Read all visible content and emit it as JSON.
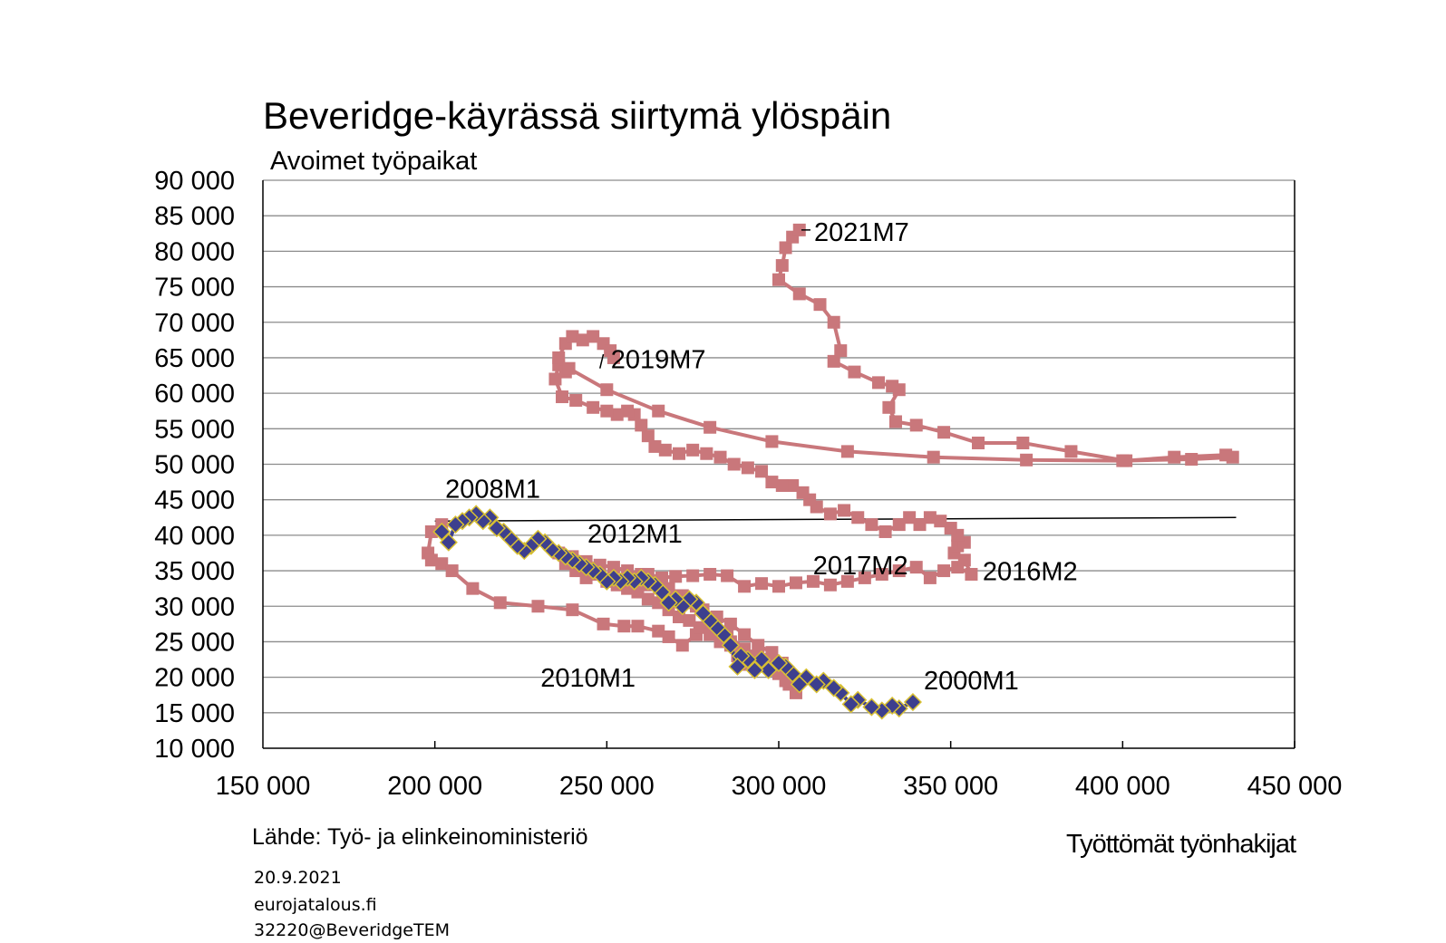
{
  "chart_data": {
    "type": "line",
    "title": "Beveridge-käyrässä siirtymä ylöspäin",
    "ylabel": "Avoimet työpaikat",
    "xlabel": "Työttömät työnhakijat",
    "xlim": [
      150000,
      450000
    ],
    "ylim": [
      10000,
      90000
    ],
    "x_ticks": [
      "150 000",
      "200 000",
      "250 000",
      "300 000",
      "350 000",
      "400 000",
      "450 000"
    ],
    "y_ticks": [
      "10 000",
      "15 000",
      "20 000",
      "25 000",
      "30 000",
      "35 000",
      "40 000",
      "45 000",
      "50 000",
      "55 000",
      "60 000",
      "65 000",
      "70 000",
      "75 000",
      "80 000",
      "85 000",
      "90 000"
    ],
    "grid": "horizontal",
    "colors": {
      "series_2000_2010": "#3d3f8e",
      "series_2010_2021": "#c9777b",
      "trend_2000": "#3d3f8e",
      "trend_2016": "#c9777b",
      "reference": "#000000",
      "marker_edge_2000": "#d8c032"
    },
    "annotations": [
      {
        "text": "2021M7",
        "x": 305000,
        "y": 83000
      },
      {
        "text": "2019M7",
        "x": 248000,
        "y": 63500
      },
      {
        "text": "2008M1",
        "x": 212000,
        "y": 43000
      },
      {
        "text": "2012M1",
        "x": 218000,
        "y": 41500
      },
      {
        "text": "2017M2",
        "x": 330000,
        "y": 36000
      },
      {
        "text": "2016M2",
        "x": 354000,
        "y": 36500
      },
      {
        "text": "2010M1",
        "x": 265000,
        "y": 22000
      },
      {
        "text": "2000M1",
        "x": 339000,
        "y": 16500
      }
    ],
    "series": [
      {
        "values": [
          [
            339000,
            16500
          ],
          [
            335000,
            15600
          ],
          [
            333000,
            16000
          ],
          [
            330000,
            15300
          ],
          [
            327000,
            15800
          ],
          [
            323000,
            16800
          ],
          [
            321000,
            16200
          ],
          [
            318000,
            17800
          ],
          [
            316000,
            18500
          ],
          [
            313000,
            19500
          ],
          [
            311000,
            19000
          ],
          [
            308000,
            20000
          ],
          [
            306000,
            19000
          ],
          [
            304000,
            20500
          ],
          [
            302000,
            21500
          ],
          [
            300000,
            22000
          ],
          [
            297000,
            21000
          ],
          [
            295000,
            22500
          ],
          [
            293000,
            21000
          ],
          [
            291000,
            22500
          ],
          [
            289000,
            23000
          ],
          [
            288000,
            21500
          ],
          [
            286000,
            24500
          ],
          [
            284000,
            26000
          ],
          [
            282000,
            27000
          ],
          [
            280000,
            28000
          ],
          [
            278000,
            29000
          ],
          [
            276000,
            30500
          ],
          [
            274000,
            31000
          ],
          [
            272000,
            30000
          ],
          [
            270000,
            31000
          ],
          [
            268000,
            30500
          ],
          [
            266000,
            32000
          ],
          [
            264000,
            33000
          ],
          [
            262000,
            33500
          ],
          [
            260000,
            34000
          ],
          [
            258000,
            33500
          ],
          [
            256000,
            34000
          ],
          [
            254000,
            33500
          ],
          [
            252000,
            34000
          ],
          [
            250000,
            33500
          ],
          [
            248000,
            34500
          ],
          [
            246000,
            35000
          ],
          [
            244000,
            35500
          ],
          [
            242000,
            36000
          ],
          [
            240000,
            36500
          ],
          [
            238000,
            37000
          ],
          [
            236000,
            37500
          ],
          [
            234000,
            38000
          ],
          [
            232000,
            39000
          ],
          [
            230000,
            39500
          ],
          [
            228000,
            38500
          ],
          [
            226000,
            37800
          ],
          [
            224000,
            38500
          ],
          [
            222000,
            39500
          ],
          [
            220000,
            40500
          ],
          [
            218000,
            41000
          ],
          [
            216000,
            42500
          ],
          [
            214000,
            42000
          ],
          [
            212000,
            43000
          ],
          [
            210000,
            42500
          ],
          [
            208000,
            42000
          ],
          [
            206000,
            41500
          ],
          [
            204000,
            39000
          ],
          [
            202000,
            40500
          ]
        ]
      },
      {
        "values": [
          [
            202000,
            41500
          ],
          [
            199000,
            40500
          ],
          [
            198000,
            37500
          ],
          [
            199000,
            36500
          ],
          [
            202000,
            36000
          ],
          [
            205000,
            35000
          ],
          [
            211000,
            32500
          ],
          [
            219000,
            30500
          ],
          [
            230000,
            30000
          ],
          [
            240000,
            29500
          ],
          [
            249000,
            27500
          ],
          [
            255000,
            27200
          ],
          [
            259000,
            27200
          ],
          [
            265000,
            26500
          ],
          [
            268000,
            25700
          ],
          [
            272000,
            24500
          ],
          [
            276000,
            26000
          ],
          [
            280000,
            27000
          ],
          [
            283000,
            26000
          ],
          [
            286000,
            25000
          ],
          [
            288000,
            23000
          ],
          [
            291000,
            21800
          ],
          [
            294000,
            23000
          ],
          [
            297000,
            21500
          ],
          [
            300000,
            20500
          ],
          [
            303000,
            19000
          ],
          [
            305000,
            17800
          ],
          [
            302000,
            19500
          ],
          [
            299000,
            21000
          ],
          [
            295000,
            22500
          ],
          [
            290000,
            24000
          ],
          [
            285000,
            26000
          ],
          [
            280000,
            28000
          ],
          [
            276000,
            30000
          ],
          [
            272000,
            31500
          ],
          [
            268000,
            32500
          ],
          [
            264000,
            33500
          ],
          [
            260000,
            34500
          ],
          [
            256000,
            35000
          ],
          [
            252000,
            35500
          ],
          [
            248000,
            35800
          ],
          [
            244000,
            36300
          ],
          [
            240000,
            37000
          ],
          [
            236000,
            37500
          ],
          [
            238000,
            36000
          ],
          [
            241000,
            35000
          ],
          [
            244000,
            34000
          ],
          [
            247000,
            34500
          ],
          [
            250000,
            33500
          ],
          [
            253000,
            33000
          ],
          [
            256000,
            32500
          ],
          [
            259000,
            32000
          ],
          [
            262000,
            31000
          ],
          [
            265000,
            30500
          ],
          [
            268000,
            29500
          ],
          [
            271000,
            28500
          ],
          [
            274000,
            28000
          ],
          [
            277000,
            27000
          ],
          [
            280000,
            26000
          ],
          [
            283000,
            25000
          ],
          [
            286000,
            24500
          ],
          [
            289000,
            23500
          ],
          [
            293000,
            23000
          ],
          [
            297000,
            22500
          ],
          [
            301000,
            22000
          ],
          [
            298000,
            23500
          ],
          [
            294000,
            24500
          ],
          [
            290000,
            26000
          ],
          [
            286000,
            27500
          ],
          [
            282000,
            28500
          ],
          [
            278000,
            29500
          ],
          [
            274000,
            30500
          ],
          [
            270000,
            31500
          ],
          [
            266000,
            32500
          ],
          [
            262000,
            33000
          ],
          [
            258000,
            34000
          ],
          [
            262000,
            34500
          ],
          [
            266000,
            34000
          ],
          [
            270000,
            34200
          ],
          [
            275000,
            34300
          ],
          [
            280000,
            34500
          ],
          [
            285000,
            34300
          ],
          [
            290000,
            32800
          ],
          [
            295000,
            33200
          ],
          [
            300000,
            32800
          ],
          [
            305000,
            33300
          ],
          [
            310000,
            33500
          ],
          [
            315000,
            33000
          ],
          [
            320000,
            33500
          ],
          [
            325000,
            34000
          ],
          [
            330000,
            34500
          ],
          [
            335000,
            35000
          ],
          [
            340000,
            35500
          ],
          [
            344000,
            34000
          ],
          [
            348000,
            35000
          ],
          [
            352000,
            35500
          ],
          [
            356000,
            34500
          ],
          [
            354000,
            36500
          ],
          [
            351000,
            37500
          ],
          [
            352000,
            38500
          ],
          [
            354000,
            39000
          ],
          [
            352000,
            40000
          ],
          [
            350000,
            41000
          ],
          [
            347000,
            42000
          ],
          [
            344000,
            42500
          ],
          [
            341000,
            41500
          ],
          [
            338000,
            42500
          ],
          [
            335000,
            41500
          ],
          [
            331000,
            40500
          ],
          [
            327000,
            41500
          ],
          [
            323000,
            42500
          ],
          [
            319000,
            43500
          ],
          [
            315000,
            43000
          ],
          [
            311000,
            44000
          ],
          [
            309000,
            45000
          ],
          [
            307000,
            46000
          ],
          [
            304000,
            47000
          ],
          [
            301000,
            47000
          ],
          [
            298000,
            47500
          ],
          [
            295000,
            49000
          ],
          [
            291000,
            49500
          ],
          [
            287000,
            50000
          ],
          [
            283000,
            51000
          ],
          [
            279000,
            51500
          ],
          [
            275000,
            52000
          ],
          [
            271000,
            51500
          ],
          [
            267000,
            52000
          ],
          [
            264000,
            52500
          ],
          [
            262000,
            54000
          ],
          [
            260000,
            55500
          ],
          [
            258000,
            57000
          ],
          [
            256000,
            57500
          ],
          [
            253000,
            57000
          ],
          [
            250000,
            57500
          ],
          [
            246000,
            58000
          ],
          [
            241000,
            59000
          ],
          [
            237000,
            59500
          ],
          [
            235000,
            62000
          ],
          [
            236000,
            64000
          ],
          [
            238000,
            63000
          ],
          [
            236000,
            65000
          ],
          [
            238000,
            67000
          ],
          [
            240000,
            68000
          ],
          [
            243000,
            67500
          ],
          [
            246000,
            68000
          ],
          [
            249000,
            67000
          ],
          [
            251000,
            66000
          ],
          [
            252000,
            65000
          ]
        ]
      },
      {
        "values": [
          [
            239000,
            63500
          ],
          [
            250000,
            60500
          ],
          [
            265000,
            57500
          ],
          [
            280000,
            55200
          ],
          [
            298000,
            53200
          ],
          [
            320000,
            51800
          ],
          [
            345000,
            51000
          ],
          [
            372000,
            50600
          ],
          [
            400000,
            50500
          ],
          [
            420000,
            50700
          ],
          [
            432000,
            51000
          ],
          [
            430000,
            51300
          ],
          [
            415000,
            51000
          ],
          [
            401000,
            50500
          ],
          [
            385000,
            51800
          ],
          [
            371000,
            53000
          ],
          [
            358000,
            53000
          ],
          [
            348000,
            54500
          ],
          [
            340000,
            55500
          ],
          [
            334000,
            56000
          ],
          [
            332000,
            58000
          ],
          [
            335000,
            60500
          ],
          [
            333000,
            61000
          ],
          [
            329000,
            61500
          ],
          [
            322000,
            63000
          ],
          [
            316000,
            64500
          ],
          [
            318000,
            66000
          ],
          [
            316000,
            70000
          ],
          [
            312000,
            72500
          ],
          [
            306000,
            74000
          ],
          [
            300000,
            76000
          ],
          [
            301000,
            78000
          ],
          [
            302000,
            80500
          ],
          [
            304000,
            82000
          ],
          [
            306000,
            83000
          ]
        ]
      }
    ],
    "trend_lines": [
      {
        "values": [
          [
            200000,
            42000
          ],
          [
            433000,
            42500
          ]
        ]
      }
    ]
  },
  "labels": {
    "source": "Lähde: Työ- ja elinkeinoministeriö",
    "date": "20.9.2021",
    "site": "eurojatalous.fi",
    "id": "32220@BeveridgeTEM"
  }
}
